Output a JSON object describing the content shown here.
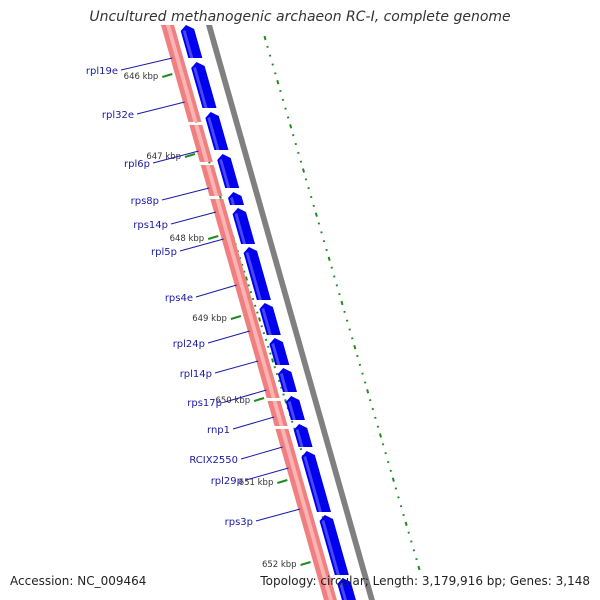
{
  "title": "Uncultured methanogenic archaeon RC-I, complete genome",
  "footer": {
    "accession": "Accession: NC_009464",
    "summary": "Topology: circular; Length: 3,179,916 bp; Genes: 3,148"
  },
  "colors": {
    "gene_forward": "#0000ee",
    "gene_shade": "#7777ff",
    "contig_band": "#f08080",
    "contig_highlight": "#ffc4c4",
    "backbone": "#808080",
    "gc_skew": "#1e8c1e",
    "label": "#1a1aa6"
  },
  "kbp_ticks": [
    "646 kbp",
    "647 kbp",
    "648 kbp",
    "649 kbp",
    "650 kbp",
    "651 kbp",
    "652 kbp"
  ],
  "genes": [
    {
      "name": "rpl19e"
    },
    {
      "name": "rpl32e"
    },
    {
      "name": "rpl6p"
    },
    {
      "name": "rps8p"
    },
    {
      "name": "rps14p"
    },
    {
      "name": "rpl5p"
    },
    {
      "name": "rps4e"
    },
    {
      "name": "rpl24p"
    },
    {
      "name": "rpl14p"
    },
    {
      "name": "rps17p"
    },
    {
      "name": "rnp1"
    },
    {
      "name": "RCIX2550"
    },
    {
      "name": "rpl29p"
    },
    {
      "name": "rps3p"
    }
  ]
}
